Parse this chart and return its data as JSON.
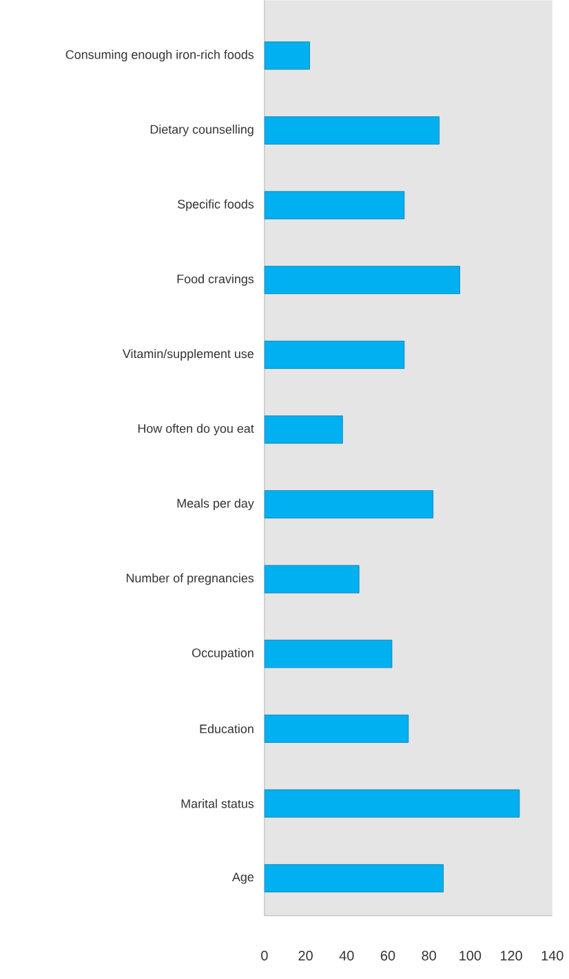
{
  "chart_data": {
    "type": "bar",
    "orientation": "horizontal",
    "categories": [
      "Consuming enough iron-rich foods",
      "Dietary counselling",
      "Specific foods",
      "Food cravings",
      "Vitamin/supplement use",
      "How often do you eat",
      "Meals per day",
      "Number of pregnancies",
      "Occupation",
      "Education",
      "Marital status",
      "Age"
    ],
    "values": [
      22,
      85,
      68,
      95,
      68,
      38,
      82,
      46,
      62,
      70,
      124,
      87
    ],
    "color": "#00b0f0",
    "xlim": [
      0,
      140
    ],
    "xticks": [
      0,
      20,
      40,
      60,
      80,
      100,
      120,
      140
    ]
  }
}
